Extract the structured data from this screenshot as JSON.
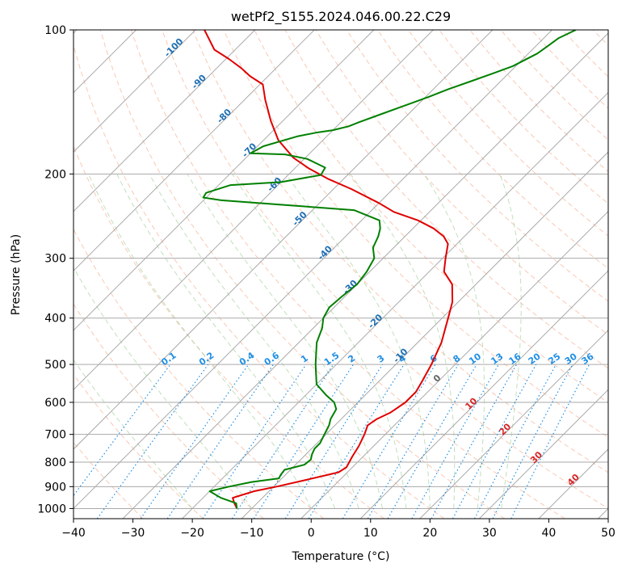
{
  "chart_data": {
    "type": "line",
    "title": "wetPf2_S155.2024.046.00.22.C29",
    "xlabel": "Temperature (°C)",
    "ylabel": "Pressure (hPa)",
    "xlim": [
      -40,
      50
    ],
    "ylim": [
      1050,
      100
    ],
    "y_scale": "log",
    "grid": true,
    "x_ticks": [
      -40,
      -30,
      -20,
      -10,
      0,
      10,
      20,
      30,
      40,
      50
    ],
    "y_ticks": [
      100,
      200,
      300,
      400,
      500,
      600,
      700,
      800,
      900,
      1000
    ],
    "series": [
      {
        "color": "#e00000",
        "points": [
          [
            -12.5,
            1000
          ],
          [
            -13.8,
            975
          ],
          [
            -15.0,
            950
          ],
          [
            -12.5,
            920
          ],
          [
            -9.5,
            900
          ],
          [
            -5.5,
            870
          ],
          [
            -1.5,
            840
          ],
          [
            -1.0,
            820
          ],
          [
            -1.8,
            780
          ],
          [
            -2.5,
            740
          ],
          [
            -3.5,
            700
          ],
          [
            -4.5,
            670
          ],
          [
            -4.0,
            650
          ],
          [
            -2.8,
            630
          ],
          [
            -2.0,
            600
          ],
          [
            -2.0,
            570
          ],
          [
            -2.8,
            540
          ],
          [
            -4.0,
            500
          ],
          [
            -6.0,
            450
          ],
          [
            -9.0,
            400
          ],
          [
            -11.0,
            370
          ],
          [
            -14.0,
            340
          ],
          [
            -17.5,
            320
          ],
          [
            -19.5,
            300
          ],
          [
            -21.5,
            280
          ],
          [
            -23.5,
            270
          ],
          [
            -26.5,
            260
          ],
          [
            -30.5,
            250
          ],
          [
            -36.0,
            240
          ],
          [
            -40.0,
            230
          ],
          [
            -47.0,
            215
          ],
          [
            -52.5,
            205
          ],
          [
            -57.5,
            195
          ],
          [
            -62.0,
            185
          ],
          [
            -67.5,
            170
          ],
          [
            -72.0,
            155
          ],
          [
            -76.5,
            140
          ],
          [
            -79.5,
            130
          ],
          [
            -83.0,
            125
          ],
          [
            -86.0,
            120
          ],
          [
            -89.5,
            115
          ],
          [
            -93.5,
            110
          ],
          [
            -98.5,
            100
          ]
        ]
      },
      {
        "color": "#008000",
        "points": [
          [
            -12.5,
            1000
          ],
          [
            -13.5,
            975
          ],
          [
            -17.0,
            950
          ],
          [
            -20.0,
            920
          ],
          [
            -17.5,
            900
          ],
          [
            -14.5,
            880
          ],
          [
            -10.5,
            865
          ],
          [
            -10.8,
            850
          ],
          [
            -11.0,
            830
          ],
          [
            -8.5,
            810
          ],
          [
            -8.3,
            790
          ],
          [
            -9.0,
            770
          ],
          [
            -9.5,
            750
          ],
          [
            -9.5,
            730
          ],
          [
            -10.0,
            710
          ],
          [
            -10.5,
            690
          ],
          [
            -11.0,
            670
          ],
          [
            -11.8,
            650
          ],
          [
            -12.5,
            620
          ],
          [
            -14.0,
            600
          ],
          [
            -16.5,
            580
          ],
          [
            -20.0,
            550
          ],
          [
            -23.5,
            500
          ],
          [
            -27.0,
            450
          ],
          [
            -28.5,
            420
          ],
          [
            -30.0,
            400
          ],
          [
            -30.8,
            380
          ],
          [
            -30.5,
            360
          ],
          [
            -30.0,
            340
          ],
          [
            -30.5,
            320
          ],
          [
            -31.5,
            300
          ],
          [
            -33.5,
            285
          ],
          [
            -34.5,
            270
          ],
          [
            -35.5,
            260
          ],
          [
            -37.0,
            250
          ],
          [
            -43.0,
            238
          ],
          [
            -67.0,
            227
          ],
          [
            -70.5,
            224
          ],
          [
            -70.8,
            219
          ],
          [
            -68.0,
            211
          ],
          [
            -60.0,
            208
          ],
          [
            -54.5,
            201
          ],
          [
            -55.0,
            194
          ],
          [
            -59.5,
            186
          ],
          [
            -64.0,
            182
          ],
          [
            -70.0,
            181
          ],
          [
            -69.0,
            175
          ],
          [
            -65.0,
            167
          ],
          [
            -62.5,
            164
          ],
          [
            -60.0,
            162
          ],
          [
            -58.0,
            159
          ],
          [
            -57.0,
            156
          ],
          [
            -55.0,
            151
          ],
          [
            -52.5,
            145
          ],
          [
            -49.5,
            138
          ],
          [
            -47.5,
            133
          ],
          [
            -45.0,
            128
          ],
          [
            -42.5,
            123
          ],
          [
            -40.5,
            119
          ],
          [
            -38.5,
            112
          ],
          [
            -38.0,
            108
          ],
          [
            -37.5,
            104
          ],
          [
            -36.0,
            100
          ]
        ]
      }
    ],
    "dry_adiabat_labels": [
      "-100",
      "-90",
      "-80",
      "-70",
      "-60",
      "-50",
      "-40",
      "-30",
      "-20",
      "-10"
    ],
    "mixing_ratio_labels": [
      "0.1",
      "0.2",
      "0.4",
      "0.6",
      "1",
      "1.5",
      "2",
      "3",
      "4",
      "6",
      "8",
      "10",
      "13",
      "16",
      "20",
      "25",
      "30",
      "36"
    ],
    "moist_adiabat_labels": [
      "0",
      "10",
      "20",
      "30",
      "40"
    ],
    "colors": {
      "temperature": "#e00000",
      "dewpoint": "#008000",
      "isotherm": "#aaaaaa",
      "dry_adiabat": "#f4a582",
      "moist_adiabat": "#a6d3a0",
      "mixing_ratio": "#1f8fe6",
      "dry_label": "#1f6fb4",
      "moist_label": "#d62728"
    }
  }
}
